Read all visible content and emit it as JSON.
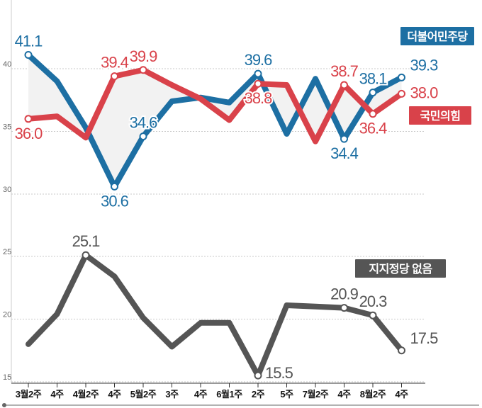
{
  "chart_data": {
    "type": "line",
    "x_labels": [
      "3월2주",
      "4주",
      "4월2주",
      "4주",
      "5월2주",
      "3주",
      "4주",
      "6월1주",
      "2주",
      "5주",
      "7월2주",
      "4주",
      "8월2주",
      "4주"
    ],
    "x_tick_labels": [
      "3월2주",
      "4주",
      "4월2주",
      "4주",
      "5월2주",
      "3주",
      "4주",
      "6월1주",
      "2주",
      "5주",
      "7월2주",
      "4주",
      "8월2주",
      "4주"
    ],
    "y_ticks_upper": [
      "40",
      "35",
      "30"
    ],
    "y_ticks_lower": [
      "25",
      "20",
      "15"
    ],
    "upper_ylim": [
      30,
      40
    ],
    "lower_ylim": [
      15,
      25
    ],
    "series": [
      {
        "name": "더불어민주당",
        "panel": "upper",
        "color": "#1d6fa3",
        "x": [
          0,
          1,
          2,
          3,
          4,
          5,
          6,
          7,
          8,
          9,
          10,
          11,
          12,
          13
        ],
        "values": [
          41.1,
          39.0,
          35.3,
          30.6,
          34.6,
          37.4,
          37.7,
          37.3,
          39.6,
          34.8,
          39.2,
          34.4,
          38.1,
          39.3
        ],
        "markers": [
          0,
          3,
          4,
          8,
          11,
          12,
          13
        ],
        "labels": [
          {
            "i": 0,
            "text": "41.1",
            "pos": "above"
          },
          {
            "i": 3,
            "text": "30.6",
            "pos": "below"
          },
          {
            "i": 4,
            "text": "34.6",
            "pos": "above"
          },
          {
            "i": 8,
            "text": "39.6",
            "pos": "above"
          },
          {
            "i": 11,
            "text": "34.4",
            "pos": "below"
          },
          {
            "i": 12,
            "text": "38.1",
            "pos": "above"
          },
          {
            "i": 13,
            "text": "39.3",
            "pos": "right-above"
          }
        ]
      },
      {
        "name": "국민의힘",
        "panel": "upper",
        "color": "#d9424a",
        "x": [
          0,
          1,
          2,
          3,
          4,
          5,
          6,
          7,
          8,
          9,
          10,
          11,
          12,
          13
        ],
        "values": [
          36.0,
          36.2,
          34.5,
          39.4,
          39.9,
          38.7,
          37.6,
          35.9,
          38.8,
          38.7,
          34.2,
          38.7,
          36.4,
          38.0
        ],
        "markers": [
          0,
          3,
          4,
          8,
          11,
          12,
          13
        ],
        "labels": [
          {
            "i": 0,
            "text": "36.0",
            "pos": "below"
          },
          {
            "i": 3,
            "text": "39.4",
            "pos": "above"
          },
          {
            "i": 4,
            "text": "39.9",
            "pos": "above"
          },
          {
            "i": 8,
            "text": "38.8",
            "pos": "below"
          },
          {
            "i": 11,
            "text": "38.7",
            "pos": "above"
          },
          {
            "i": 12,
            "text": "36.4",
            "pos": "below"
          },
          {
            "i": 13,
            "text": "38.0",
            "pos": "right-below"
          }
        ]
      },
      {
        "name": "지지정당 없음",
        "panel": "lower",
        "color": "#555555",
        "x": [
          0,
          1,
          2,
          3,
          4,
          5,
          6,
          7,
          8,
          9,
          10,
          11,
          12,
          13
        ],
        "values": [
          18.0,
          20.4,
          25.1,
          23.4,
          20.1,
          17.8,
          19.7,
          19.7,
          15.5,
          21.1,
          21.0,
          20.9,
          20.3,
          17.5
        ],
        "markers": [
          2,
          8,
          11,
          12,
          13
        ],
        "labels": [
          {
            "i": 2,
            "text": "25.1",
            "pos": "above"
          },
          {
            "i": 8,
            "text": "15.5",
            "pos": "right"
          },
          {
            "i": 11,
            "text": "20.9",
            "pos": "above"
          },
          {
            "i": 12,
            "text": "20.3",
            "pos": "above"
          },
          {
            "i": 13,
            "text": "17.5",
            "pos": "right-above"
          }
        ]
      }
    ],
    "legend": [
      {
        "name": "더불어민주당",
        "color": "#1d6fa3",
        "placement": "upper-right"
      },
      {
        "name": "국민의힘",
        "color": "#d9424a",
        "placement": "upper-right-lower"
      },
      {
        "name": "지지정당 없음",
        "color": "#555555",
        "placement": "lower-right"
      }
    ],
    "gap_fill": true
  }
}
